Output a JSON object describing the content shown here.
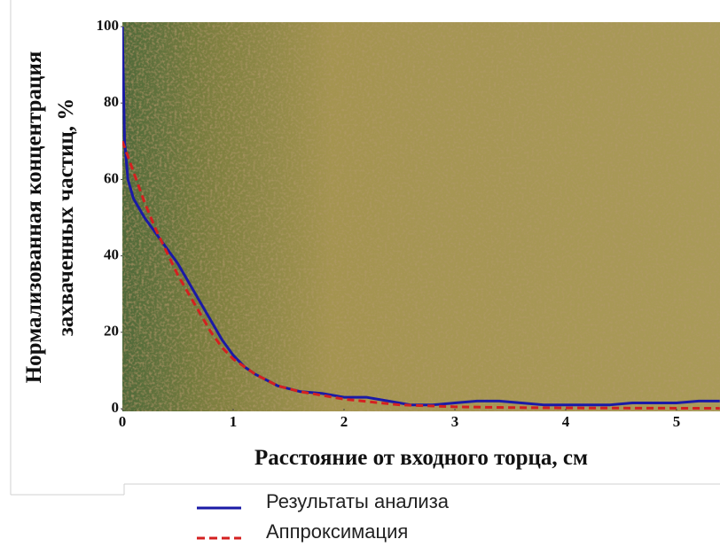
{
  "chart_data": {
    "type": "line",
    "x_label": "Расстояние от входного торца, см",
    "y_label": [
      "Нормализованная концентрация",
      "захваченных  частиц, %"
    ],
    "xlim": [
      0,
      5.39
    ],
    "ylim": [
      0,
      100
    ],
    "xticks": [
      0,
      1,
      2,
      3,
      4,
      5
    ],
    "yticks": [
      0,
      20,
      40,
      60,
      80,
      100
    ],
    "grid": false,
    "series": [
      {
        "name": "Результаты анализа",
        "color": "#1a1aa6",
        "line_style": "solid",
        "x": [
          0,
          0.02,
          0.05,
          0.1,
          0.2,
          0.3,
          0.4,
          0.5,
          0.6,
          0.7,
          0.8,
          0.9,
          1.0,
          1.1,
          1.2,
          1.4,
          1.6,
          1.8,
          2.0,
          2.2,
          2.4,
          2.6,
          2.8,
          3.0,
          3.2,
          3.4,
          3.6,
          3.8,
          4.0,
          4.2,
          4.4,
          4.6,
          4.8,
          5.0,
          5.2,
          5.39
        ],
        "values": [
          100,
          70,
          60,
          55,
          50,
          46,
          42,
          38,
          33,
          28,
          23,
          18,
          14,
          11,
          9,
          6,
          4.5,
          4,
          3,
          3,
          2,
          1,
          1,
          1.5,
          2,
          2,
          1.5,
          1,
          1,
          1,
          1,
          1.5,
          1.5,
          1.5,
          2,
          2
        ]
      },
      {
        "name": "Аппроксимация",
        "color": "#d42020",
        "line_style": "dashed",
        "x": [
          0,
          0.1,
          0.2,
          0.3,
          0.4,
          0.5,
          0.6,
          0.7,
          0.8,
          0.9,
          1.0,
          1.2,
          1.4,
          1.6,
          1.8,
          2.0,
          2.5,
          3.0,
          3.5,
          4.0,
          5.39
        ],
        "values": [
          70,
          62,
          54,
          47,
          41,
          35,
          30,
          25,
          20,
          16,
          13,
          9,
          6,
          4.5,
          3.5,
          2.5,
          1,
          0.5,
          0.3,
          0.2,
          0.1
        ]
      }
    ]
  }
}
